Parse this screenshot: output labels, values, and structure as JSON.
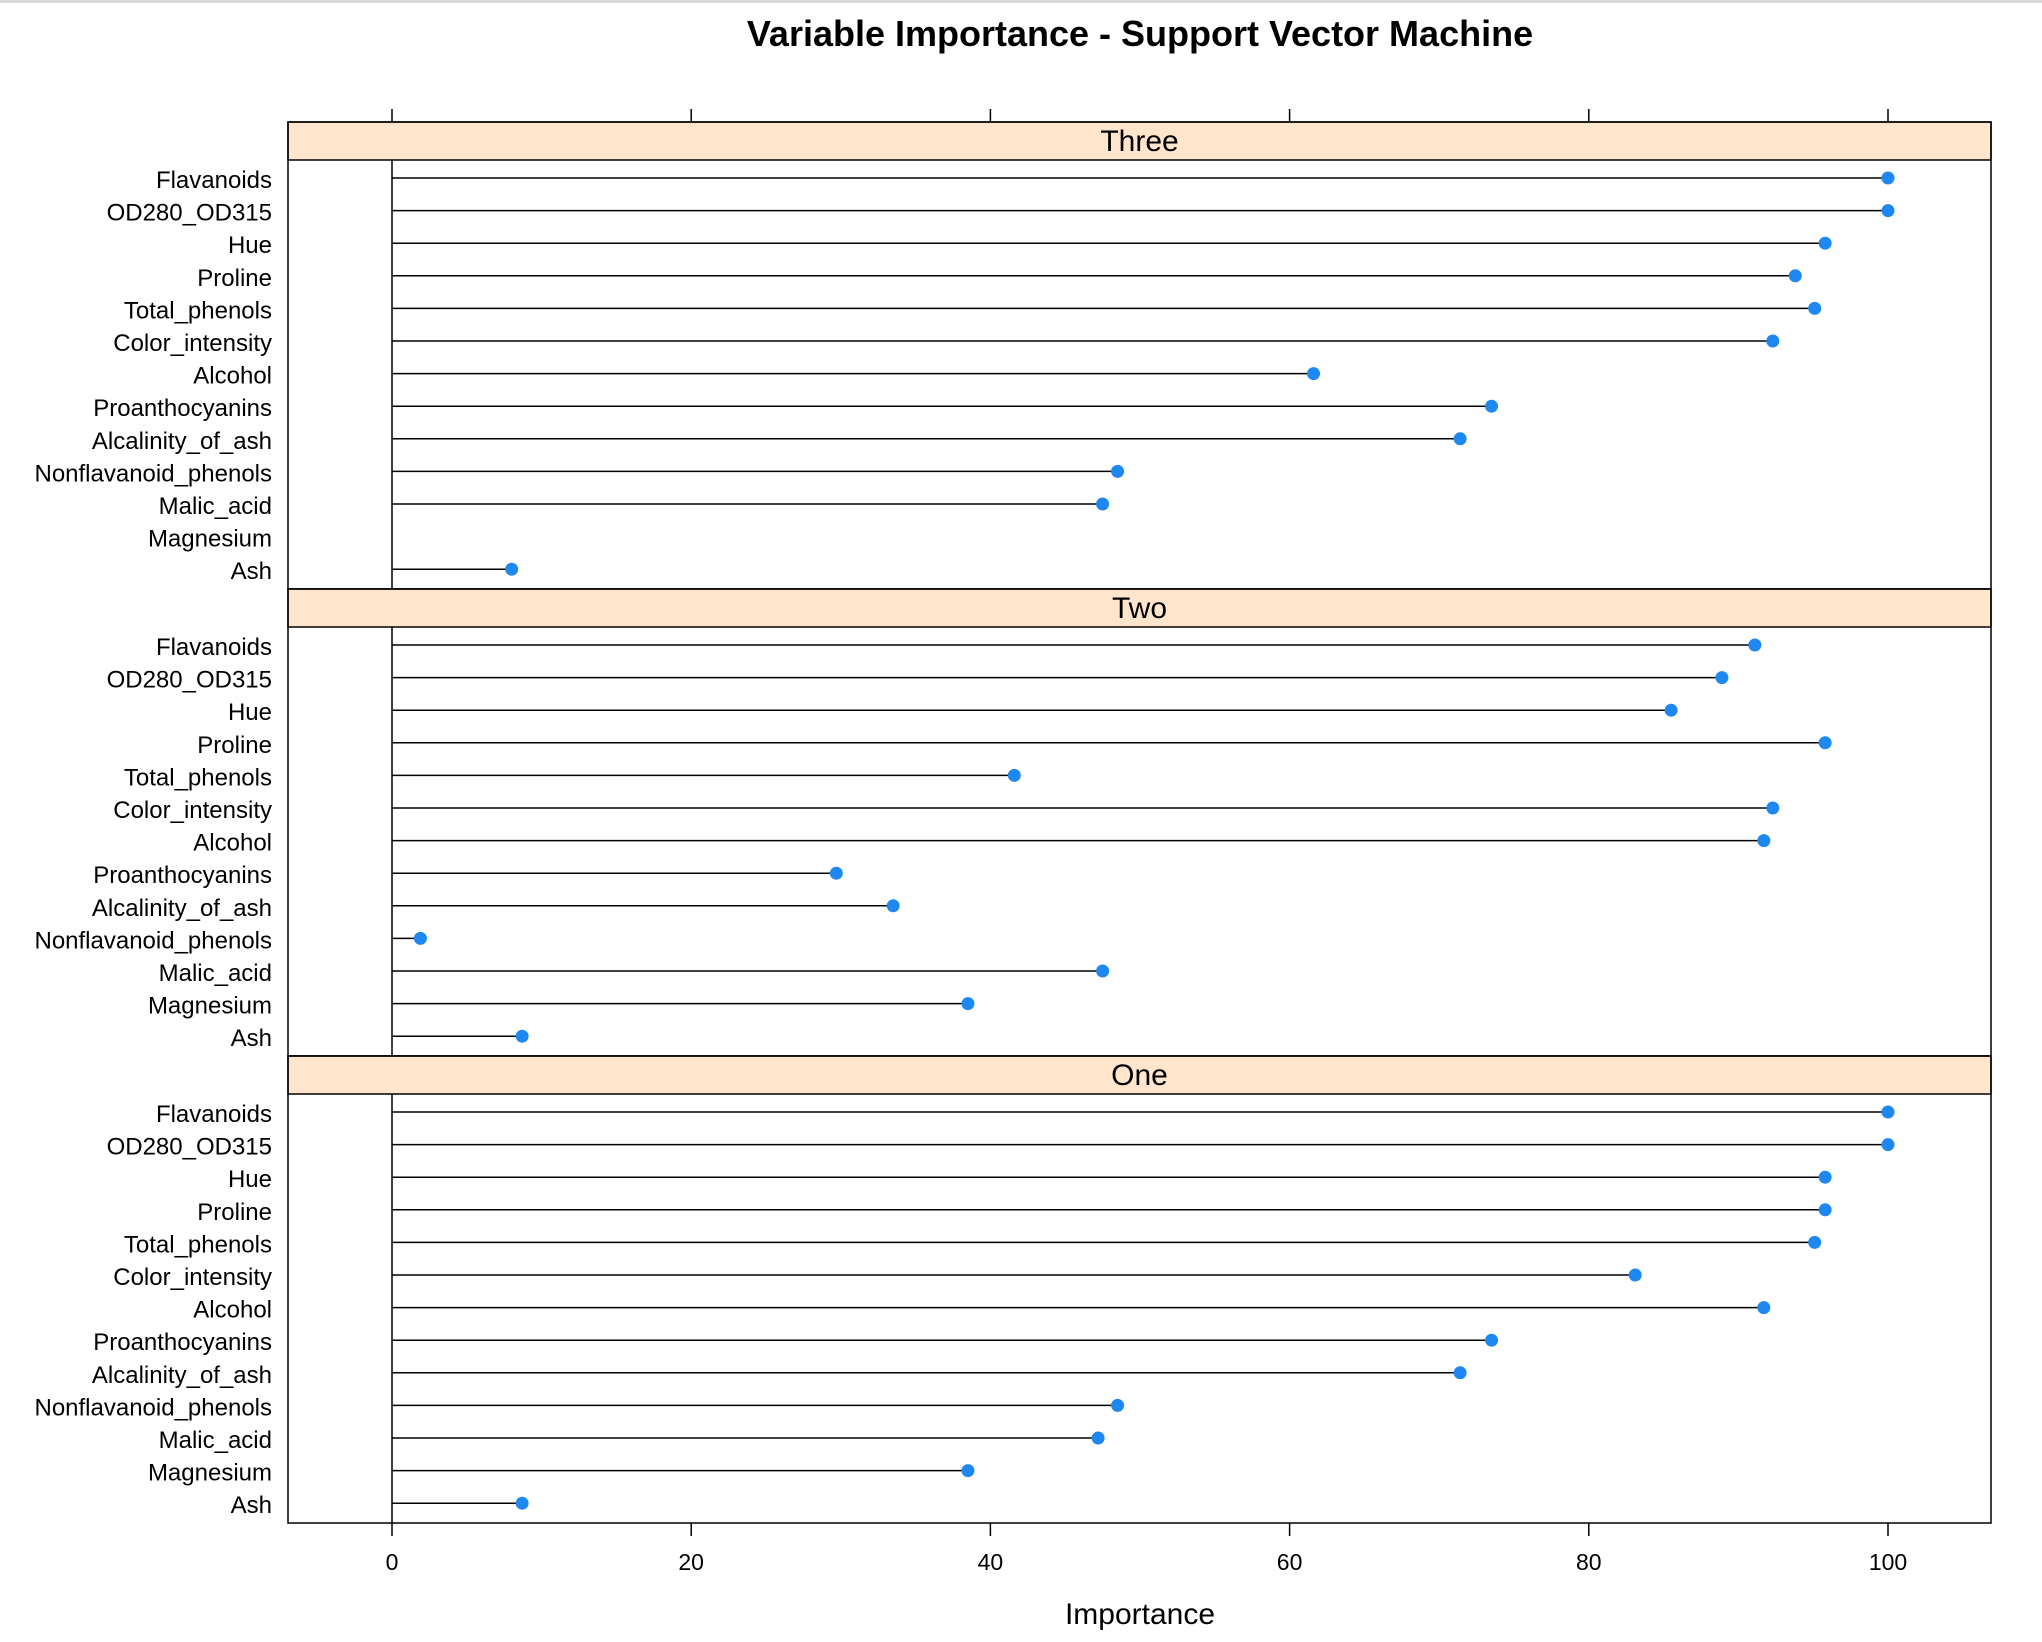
{
  "chart_data": {
    "type": "dot",
    "title": "Variable Importance - Support Vector Machine",
    "xlabel": "Importance",
    "ylabel": "",
    "xlim": [
      -7,
      107
    ],
    "x_ticks": [
      0,
      20,
      40,
      60,
      80,
      100
    ],
    "grid": false,
    "marker_color": "#1E88F0",
    "strip_color": "#FFE5CC",
    "categories": [
      "Flavanoids",
      "OD280_OD315",
      "Hue",
      "Proline",
      "Total_phenols",
      "Color_intensity",
      "Alcohol",
      "Proanthocyanins",
      "Alcalinity_of_ash",
      "Nonflavanoid_phenols",
      "Malic_acid",
      "Magnesium",
      "Ash"
    ],
    "panels": [
      {
        "name": "Three",
        "values": [
          100,
          100,
          95.8,
          93.8,
          95.1,
          92.3,
          61.6,
          73.5,
          71.4,
          48.5,
          47.5,
          0,
          8.0
        ]
      },
      {
        "name": "Two",
        "values": [
          91.1,
          88.9,
          85.5,
          95.8,
          41.6,
          92.3,
          91.7,
          29.7,
          33.5,
          1.9,
          47.5,
          38.5,
          8.7
        ]
      },
      {
        "name": "One",
        "values": [
          100,
          100,
          95.8,
          95.8,
          95.1,
          83.1,
          91.7,
          73.5,
          71.4,
          48.5,
          47.2,
          38.5,
          8.7
        ]
      }
    ]
  }
}
